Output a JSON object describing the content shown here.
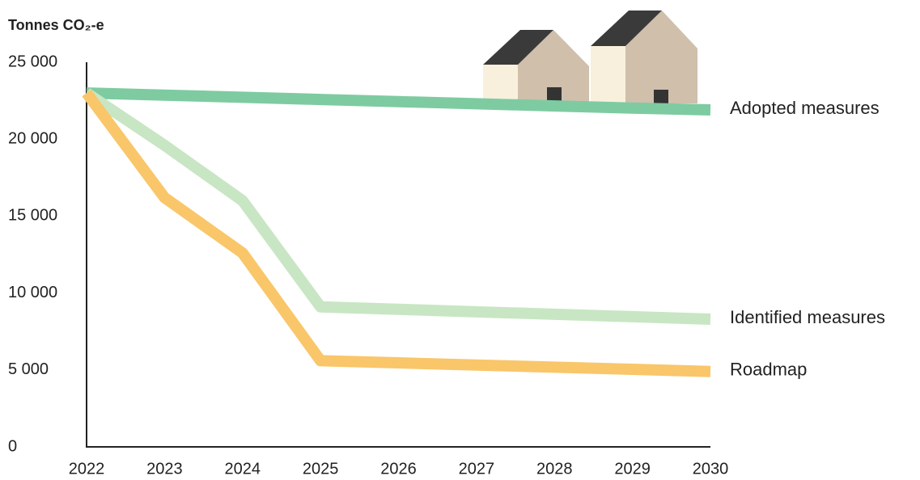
{
  "chart_data": {
    "type": "line",
    "y_axis_title": "Tonnes CO₂-e",
    "x": [
      2022,
      2023,
      2024,
      2025,
      2026,
      2027,
      2028,
      2029,
      2030
    ],
    "xlim": [
      2022,
      2030
    ],
    "xticks": [
      2022,
      2023,
      2024,
      2025,
      2026,
      2027,
      2028,
      2029,
      2030
    ],
    "ylim": [
      0,
      25000
    ],
    "yticks": [
      0,
      {
        "value": 5000,
        "label": "5 000"
      },
      {
        "value": 10000,
        "label": "10 000"
      },
      {
        "value": 15000,
        "label": "15 000"
      },
      {
        "value": 20000,
        "label": "20 000"
      },
      {
        "value": 25000,
        "label": "25 000"
      }
    ],
    "grid": false,
    "series": [
      {
        "name": "Adopted measures",
        "color": "#7ecba1",
        "values": [
          23000,
          22860,
          22720,
          22580,
          22440,
          22300,
          22160,
          22020,
          21900
        ]
      },
      {
        "name": "Identified measures",
        "color": "#c8e6c3",
        "values": [
          23000,
          19600,
          16000,
          9100,
          8940,
          8780,
          8620,
          8460,
          8300
        ]
      },
      {
        "name": "Roadmap",
        "color": "#f9c66a",
        "values": [
          23000,
          16200,
          12600,
          5600,
          5460,
          5320,
          5180,
          5040,
          4900
        ]
      }
    ]
  }
}
